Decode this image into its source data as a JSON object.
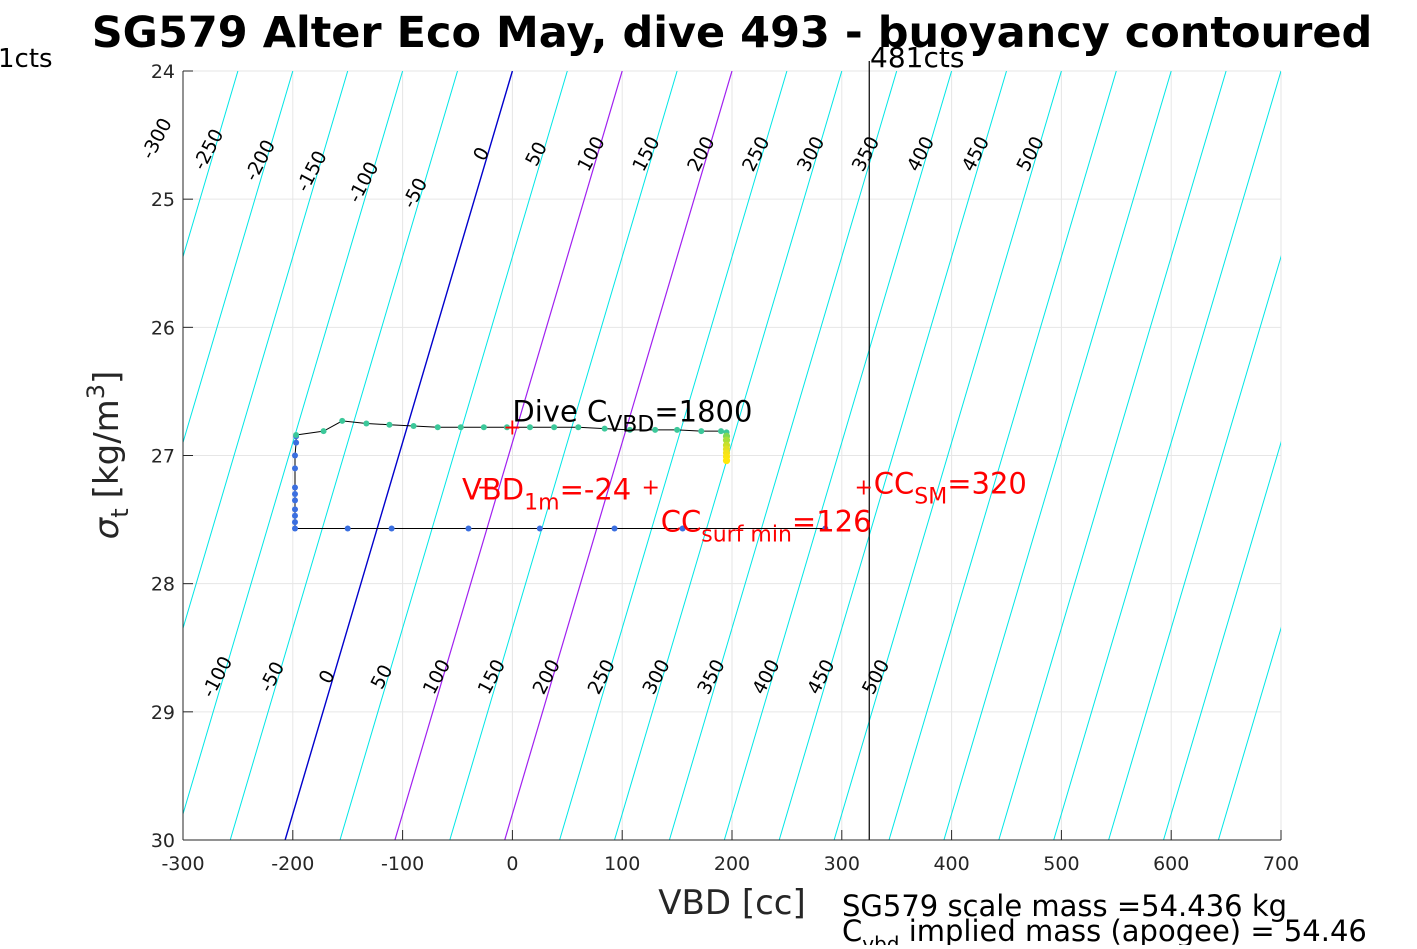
{
  "figure": {
    "title": "SG579 Alter Eco May, dive 493 - buoyancy contoured",
    "left_counts_label": "1cts",
    "right_counts_label": "481cts",
    "footer_line1": "SG579 scale mass =54.436 kg",
    "footer_line2_prefix": "C",
    "footer_line2_sub": "vbd",
    "footer_line2_suffix": " implied mass (apogee) = 54.46"
  },
  "chart_data": {
    "type": "scatter",
    "title": "SG579 Alter Eco May, dive 493 - buoyancy contoured",
    "xlabel": "VBD [cc]",
    "ylabel_symbol": "σ",
    "ylabel_sub": "t",
    "ylabel_units": "[kg/m",
    "ylabel_units_sup": "3",
    "ylabel_units_close": "]",
    "xlim": [
      -300,
      700
    ],
    "ylim": [
      24,
      30
    ],
    "y_reversed": true,
    "grid": true,
    "xticks": [
      -300,
      -200,
      -100,
      0,
      100,
      200,
      300,
      400,
      500,
      600,
      700
    ],
    "xtick_labels": [
      "-300",
      "-200",
      "-100",
      "0",
      "100",
      "200",
      "300",
      "400",
      "500",
      "600",
      "700"
    ],
    "yticks": [
      24,
      25,
      26,
      27,
      28,
      29,
      30
    ],
    "ytick_labels": [
      "24",
      "25",
      "26",
      "27",
      "28",
      "29",
      "30"
    ],
    "buoyancy_contours": {
      "values": [
        -350,
        -300,
        -250,
        -200,
        -150,
        -100,
        -50,
        0,
        50,
        100,
        150,
        200,
        250,
        300,
        350,
        400,
        450,
        500,
        550,
        600,
        650,
        700,
        750,
        800,
        850
      ],
      "sigma_at_vbd0_top": 24,
      "contour_slope_cc_per_sigma": -34.5,
      "colors": {
        "default": "#00e6e6",
        "zero": "#0000cc",
        "highlight": "#a020f0"
      },
      "highlight_values": [
        100,
        200
      ],
      "top_labels": [
        "-300",
        "-250",
        "-200",
        "-150",
        "-100",
        "-50",
        "0",
        "50",
        "100",
        "150",
        "200",
        "250",
        "300",
        "350",
        "400",
        "450",
        "500"
      ],
      "top_label_values": [
        -300,
        -250,
        -200,
        -150,
        -100,
        -50,
        0,
        50,
        100,
        150,
        200,
        250,
        300,
        350,
        400,
        450,
        500
      ],
      "bottom_labels": [
        "-100",
        "-50",
        "0",
        "50",
        "100",
        "150",
        "200",
        "250",
        "300",
        "350",
        "400",
        "450",
        "500"
      ],
      "bottom_label_values": [
        -100,
        -50,
        0,
        50,
        100,
        150,
        200,
        250,
        300,
        350,
        400,
        450,
        500
      ]
    },
    "dive_track": {
      "x": [
        -197,
        -197,
        -198,
        -198,
        -198,
        -198,
        -198,
        -198,
        -198,
        -198,
        -198,
        -150,
        -110,
        -40,
        25,
        93,
        155,
        285
      ],
      "y": [
        26.85,
        26.9,
        27.0,
        27.1,
        27.25,
        27.3,
        27.35,
        27.42,
        27.47,
        27.52,
        27.57,
        27.57,
        27.57,
        27.57,
        27.57,
        27.57,
        27.57,
        27.57
      ],
      "color": "#3b6fe0"
    },
    "climb_track": {
      "x": [
        -197,
        -172,
        -155,
        -133,
        -112,
        -90,
        -68,
        -47,
        -26,
        -5,
        16,
        38,
        60,
        84,
        107,
        130,
        150,
        172,
        190,
        195
      ],
      "y": [
        26.84,
        26.81,
        26.73,
        26.75,
        26.76,
        26.77,
        26.78,
        26.78,
        26.78,
        26.78,
        26.78,
        26.78,
        26.78,
        26.79,
        26.8,
        26.8,
        26.8,
        26.81,
        26.81,
        26.82
      ],
      "color": "#3cc89a"
    },
    "surface_cluster": {
      "x": [
        195,
        195,
        195,
        195,
        195,
        195,
        195
      ],
      "y": [
        26.85,
        26.88,
        26.92,
        26.95,
        26.98,
        27.01,
        27.04
      ],
      "colors": [
        "#7fd855",
        "#a8df3a",
        "#c8e02c",
        "#e0e024",
        "#f2e21a",
        "#fae512",
        "#ffe80a"
      ]
    },
    "vertical_line_x": 325,
    "annotations": [
      {
        "label": "Dive C",
        "sub": "VBD",
        "tail": "=1800",
        "x": 0,
        "y": 26.78,
        "color": "#000000"
      },
      {
        "label": "VBD",
        "sub": "1m",
        "tail": "=-24",
        "x": -24,
        "y": 27.25,
        "color": "#ff0000"
      },
      {
        "label": "CC",
        "sub": "surf min",
        "tail": "=126",
        "x": 126,
        "y": 27.25,
        "color": "#ff0000"
      },
      {
        "label": "CC",
        "sub": "SM",
        "tail": "=320",
        "x": 320,
        "y": 27.25,
        "color": "#ff0000"
      }
    ]
  }
}
